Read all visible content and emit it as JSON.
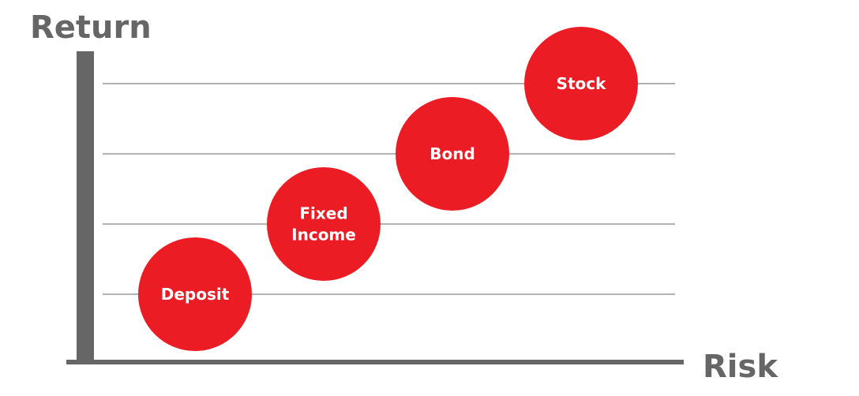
{
  "chart_data": {
    "type": "scatter",
    "title": "",
    "xlabel": "Risk",
    "ylabel": "Return",
    "grid": true,
    "colors": {
      "bubble": "#ec1c24",
      "axis": "#666666",
      "grid": "#999999",
      "label": "#ffffff"
    },
    "points": [
      {
        "label": [
          "Deposit"
        ],
        "risk": 1,
        "return": 1
      },
      {
        "label": [
          "Fixed",
          "Income"
        ],
        "risk": 2,
        "return": 2
      },
      {
        "label": [
          "Bond"
        ],
        "risk": 3,
        "return": 3
      },
      {
        "label": [
          "Stock"
        ],
        "risk": 4,
        "return": 4
      }
    ]
  }
}
